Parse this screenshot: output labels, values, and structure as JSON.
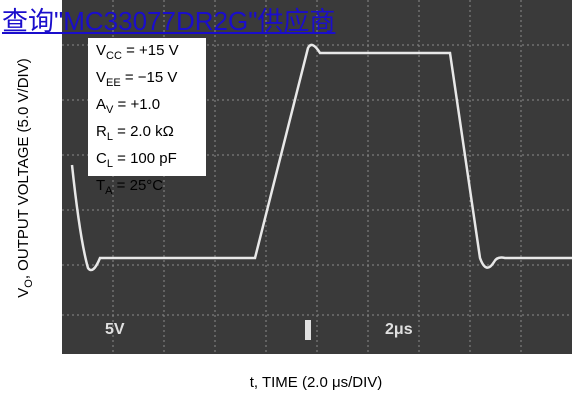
{
  "link": "查询\"MC33077DR2G\"供应商",
  "conditions": [
    {
      "main": "V",
      "sub": "CC",
      "rest": " = +15 V"
    },
    {
      "main": "V",
      "sub": "EE",
      "rest": " = −15 V"
    },
    {
      "main": "A",
      "sub": "V",
      "rest": " = +1.0"
    },
    {
      "main": "R",
      "sub": "L",
      "rest": " = 2.0 kΩ"
    },
    {
      "main": "C",
      "sub": "L",
      "rest": " = 100 pF"
    },
    {
      "main": "T",
      "sub": "A",
      "rest": " = 25°C"
    }
  ],
  "screen": {
    "volts_per_div": "5V",
    "time_per_div": "2μs"
  },
  "y_axis": {
    "main": "V",
    "sub": "O",
    "rest": ", OUTPUT VOLTAGE (5.0 V/DIV)"
  },
  "x_axis": "t, TIME (2.0 μs/DIV)"
}
